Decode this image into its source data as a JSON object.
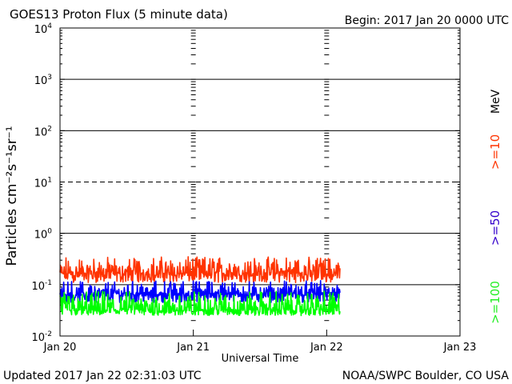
{
  "chart_data": {
    "type": "line",
    "title": "GOES13 Proton Flux (5 minute data)",
    "begin_label": "Begin: 2017 Jan 20 0000 UTC",
    "xlabel": "Universal Time",
    "ylabel": "Particles cm⁻²s⁻¹sr⁻¹",
    "y_scale": "log",
    "ylim": [
      0.01,
      10000
    ],
    "y_ticks": [
      {
        "value": 10000,
        "base": "10",
        "exp": "4"
      },
      {
        "value": 1000,
        "base": "10",
        "exp": "3"
      },
      {
        "value": 100,
        "base": "10",
        "exp": "2"
      },
      {
        "value": 10,
        "base": "10",
        "exp": "1"
      },
      {
        "value": 1,
        "base": "10",
        "exp": "0"
      },
      {
        "value": 0.1,
        "base": "10",
        "exp": "-1"
      },
      {
        "value": 0.01,
        "base": "10",
        "exp": "-2"
      }
    ],
    "dashed_threshold": 10,
    "x_ticks": [
      "Jan 20",
      "Jan 21",
      "Jan 22",
      "Jan 23"
    ],
    "x_range_days": [
      0,
      3
    ],
    "legend": {
      "unit": "MeV",
      "placement": "right",
      "entries": [
        {
          "label": ">=10",
          "color": "#ff3300"
        },
        {
          "label": ">=50",
          "color": "#3300cc"
        },
        {
          "label": ">=100",
          "color": "#22ee22"
        }
      ]
    },
    "series": [
      {
        "name": ">=10",
        "color": "#ff3300",
        "x_end_day": 2.1,
        "range": [
          0.11,
          0.35
        ],
        "typical": 0.15
      },
      {
        "name": ">=50",
        "color": "#0000ff",
        "x_end_day": 2.1,
        "range": [
          0.045,
          0.12
        ],
        "typical": 0.06
      },
      {
        "name": ">=100",
        "color": "#00ff00",
        "x_end_day": 2.1,
        "range": [
          0.025,
          0.075
        ],
        "typical": 0.03
      }
    ]
  },
  "footer": {
    "updated": "Updated 2017 Jan 22 02:31:03 UTC",
    "source": "NOAA/SWPC Boulder, CO USA"
  }
}
